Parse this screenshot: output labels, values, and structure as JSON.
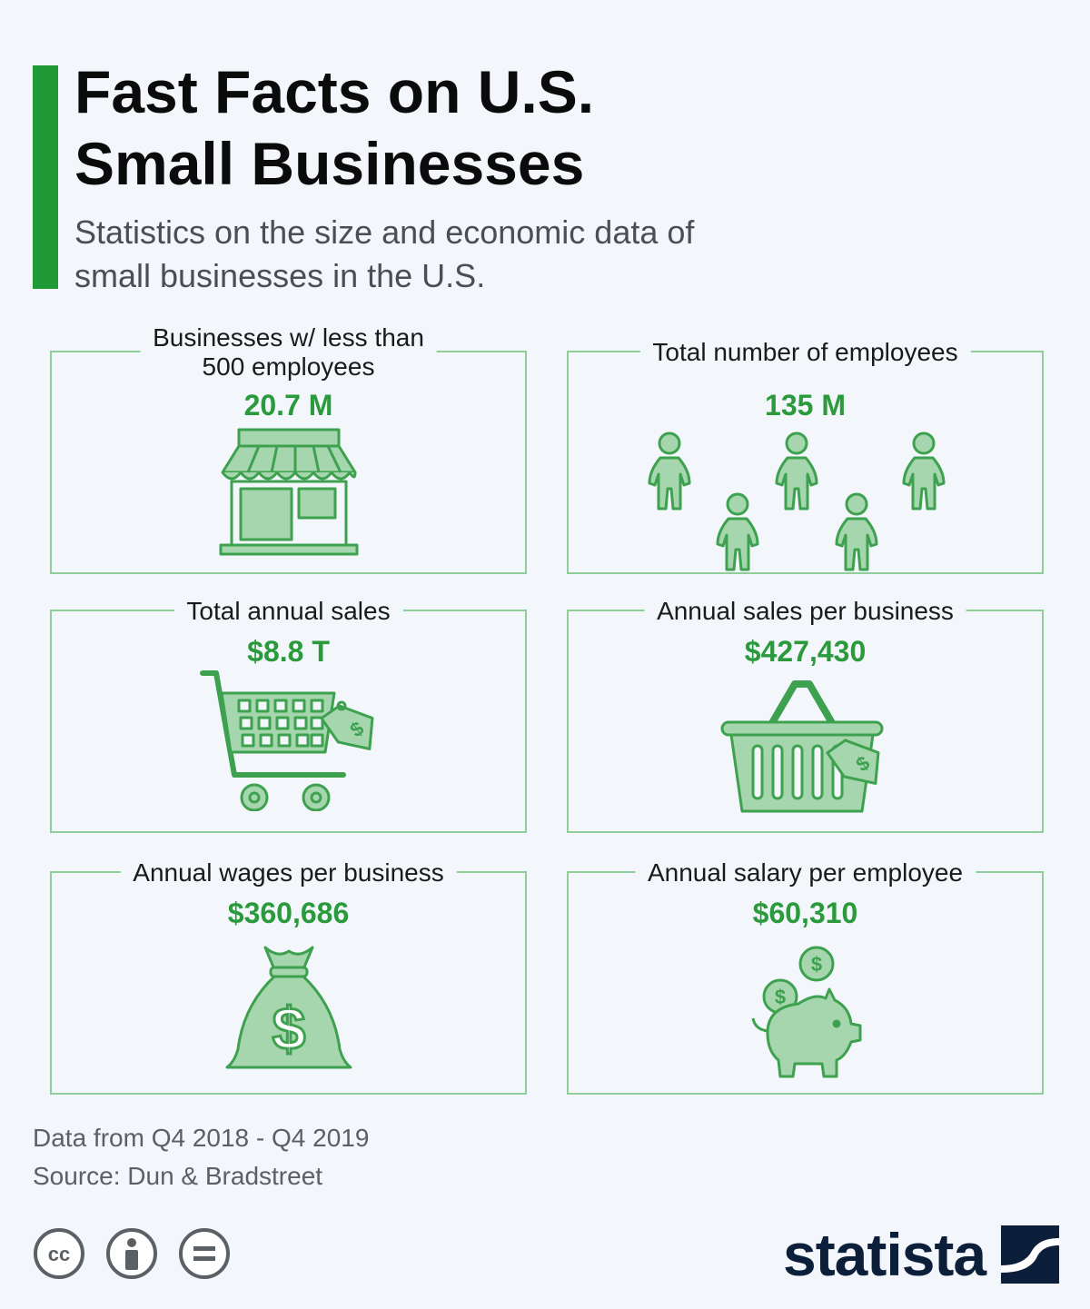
{
  "header": {
    "title_line1": "Fast Facts on U.S.",
    "title_line2": "Small Businesses",
    "subtitle_line1": "Statistics on the size and economic data of",
    "subtitle_line2": "small businesses in the U.S.",
    "accent_color": "#1f9a37"
  },
  "cards": [
    {
      "label_line1": "Businesses w/ less than",
      "label_line2": "500 employees",
      "value": "20.7 M",
      "icon": "storefront-icon"
    },
    {
      "label_line1": "Total number of employees",
      "value": "135 M",
      "icon": "people-icon"
    },
    {
      "label_line1": "Total annual sales",
      "value": "$8.8 T",
      "icon": "shopping-cart-icon"
    },
    {
      "label_line1": "Annual sales per business",
      "value": "$427,430",
      "icon": "shopping-basket-icon"
    },
    {
      "label_line1": "Annual wages per business",
      "value": "$360,686",
      "icon": "money-bag-icon"
    },
    {
      "label_line1": "Annual salary per employee",
      "value": "$60,310",
      "icon": "piggy-bank-icon"
    }
  ],
  "footer": {
    "note": "Data from Q4 2018 - Q4 2019",
    "source": "Source: Dun & Bradstreet",
    "license_icons": [
      "cc-icon",
      "attribution-icon",
      "no-derivatives-icon"
    ],
    "brand": "statista"
  },
  "colors": {
    "value_green": "#2b9a3d",
    "icon_fill": "#a6d6ae",
    "icon_stroke": "#3ea14f",
    "card_border": "#8fce99",
    "brand_navy": "#0c1f3a"
  }
}
